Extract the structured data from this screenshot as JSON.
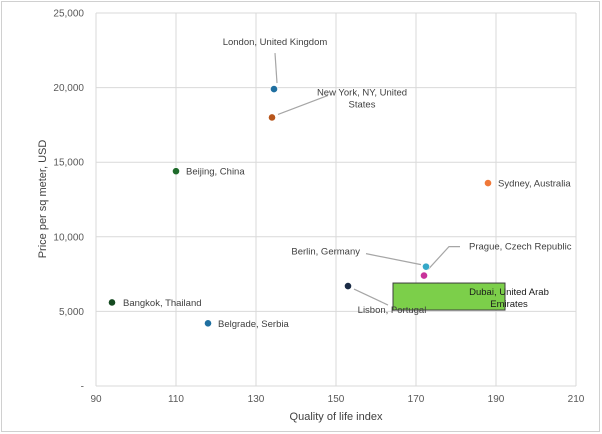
{
  "chart_data": {
    "type": "scatter",
    "xlabel": "Quality of life index",
    "ylabel": "Price per sq meter, USD",
    "xlim": [
      90,
      210
    ],
    "ylim": [
      0,
      25000
    ],
    "x_ticks": [
      "90",
      "110",
      "130",
      "150",
      "170",
      "190",
      "210"
    ],
    "y_ticks": [
      "-",
      "5,000",
      "10,000",
      "15,000",
      "20,000",
      "25,000"
    ],
    "grid": "both",
    "points": [
      {
        "label": [
          "London, United Kingdom"
        ],
        "x": 134.5,
        "y": 19900,
        "color": "#1f6fa0"
      },
      {
        "label": [
          "New York, NY, United",
          "States"
        ],
        "x": 134,
        "y": 18000,
        "color": "#b8561c"
      },
      {
        "label": [
          "Beijing, China"
        ],
        "x": 110,
        "y": 14400,
        "color": "#1e6a2a"
      },
      {
        "label": [
          "Sydney, Australia"
        ],
        "x": 188,
        "y": 13600,
        "color": "#f07838"
      },
      {
        "label": [
          "Berlin, Germany"
        ],
        "x": 172.5,
        "y": 8000,
        "color": "#35a8c8"
      },
      {
        "label": [
          "Prague, Czech Republic"
        ],
        "x": 172,
        "y": 7400,
        "color": "#c8329a"
      },
      {
        "label": [
          "Dubai, United Arab",
          "Emirates"
        ],
        "x": 175.5,
        "y": 6700,
        "color": "#62b846",
        "highlight": true
      },
      {
        "label": [
          "Lisbon, Portugal"
        ],
        "x": 153,
        "y": 6700,
        "color": "#1b2b45"
      },
      {
        "label": [
          "Bangkok, Thailand"
        ],
        "x": 94,
        "y": 5600,
        "color": "#154a20"
      },
      {
        "label": [
          "Belgrade, Serbia"
        ],
        "x": 118,
        "y": 4200,
        "color": "#1f6fa0"
      }
    ]
  }
}
